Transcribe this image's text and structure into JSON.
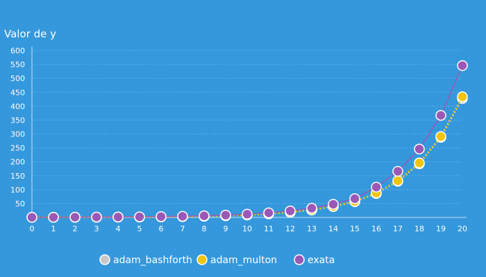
{
  "chart_data": {
    "type": "line",
    "ylabel": "Valor de y",
    "xlabel": "",
    "xlim": [
      0,
      20
    ],
    "ylim": [
      0,
      600
    ],
    "yticks": [
      50,
      100,
      150,
      200,
      250,
      300,
      350,
      400,
      450,
      500,
      550,
      600
    ],
    "x": [
      0,
      1,
      2,
      3,
      4,
      5,
      6,
      7,
      8,
      9,
      10,
      11,
      12,
      13,
      14,
      15,
      16,
      17,
      18,
      19,
      20
    ],
    "grid": true,
    "legend_position": "bottom",
    "series": [
      {
        "name": "adam_bashforth",
        "color": "#c8c8c8",
        "line_style": "dotted",
        "values": [
          0.5,
          0.6,
          0.7,
          0.9,
          1.2,
          1.6,
          2.2,
          3.1,
          4.4,
          6.2,
          8.9,
          12.8,
          18.5,
          26.8,
          38.9,
          56.6,
          86,
          130,
          193,
          288,
          428
        ]
      },
      {
        "name": "adam_multon",
        "color": "#f1c40f",
        "line_style": "dotted",
        "values": [
          0.5,
          0.6,
          0.7,
          0.9,
          1.2,
          1.6,
          2.2,
          3.1,
          4.4,
          6.3,
          9,
          13,
          18.8,
          27.3,
          39.7,
          57.8,
          88,
          132,
          196,
          291,
          434
        ]
      },
      {
        "name": "exata",
        "color": "#9b59b6",
        "line_style": "solid",
        "values": [
          0.5,
          0.7,
          0.9,
          1.2,
          1.6,
          2.2,
          3,
          4.2,
          5.9,
          8.3,
          11.7,
          16.5,
          23.4,
          33.3,
          47.4,
          67.6,
          109,
          166,
          246,
          367,
          546
        ]
      }
    ]
  }
}
